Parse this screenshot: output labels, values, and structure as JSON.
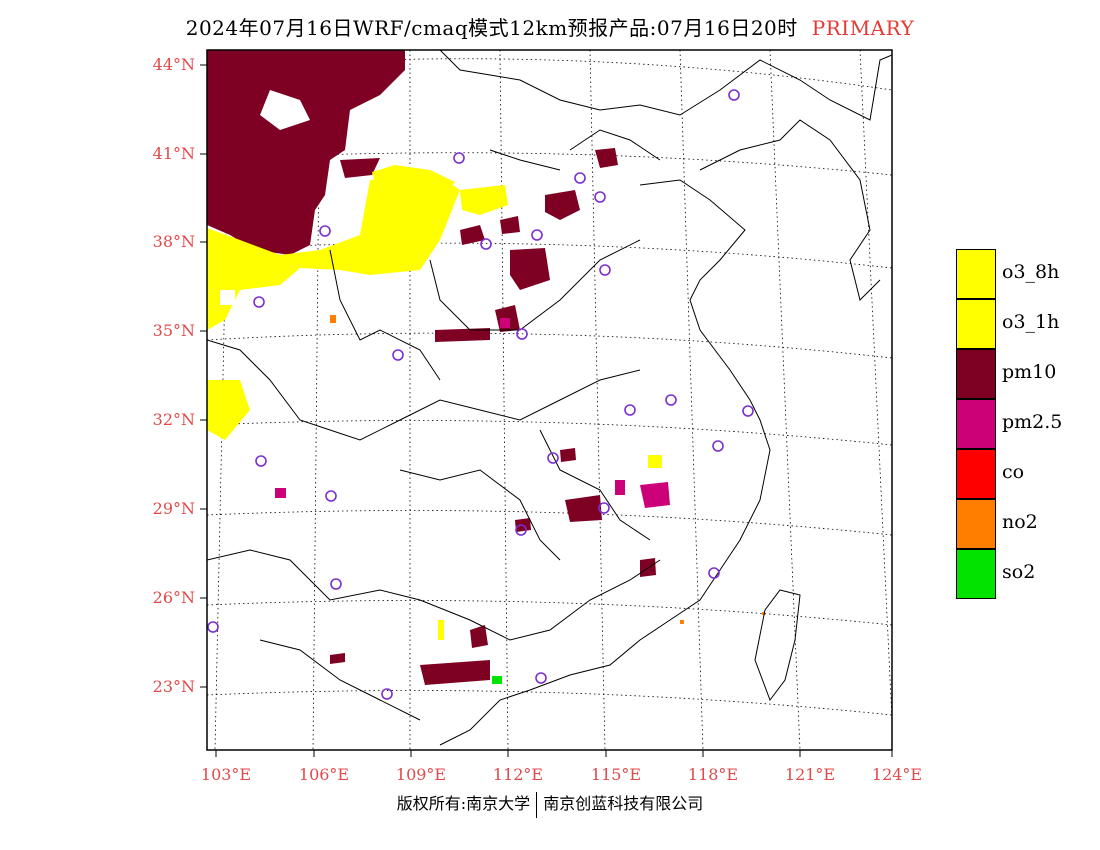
{
  "title": {
    "main": "2024年07月16日WRF/cmaq模式12km预报产品:07月16日20时",
    "tag": "PRIMARY",
    "tag_color": "#e53935"
  },
  "map": {
    "lat_labels": [
      "44°N",
      "41°N",
      "38°N",
      "35°N",
      "32°N",
      "29°N",
      "26°N",
      "23°N"
    ],
    "lon_labels": [
      "103°E",
      "106°E",
      "109°E",
      "112°E",
      "115°E",
      "118°E",
      "121°E",
      "124°E"
    ],
    "label_color": "#e04a4a"
  },
  "legend": {
    "items": [
      {
        "label": "o3_8h",
        "color": "#ffff00"
      },
      {
        "label": "o3_1h",
        "color": "#ffff00"
      },
      {
        "label": "pm10",
        "color": "#7e0023"
      },
      {
        "label": "pm2.5",
        "color": "#cc0077"
      },
      {
        "label": "co",
        "color": "#ff0000"
      },
      {
        "label": "no2",
        "color": "#ff7e00"
      },
      {
        "label": "so2",
        "color": "#00e400"
      }
    ]
  },
  "copyright": {
    "left": "版权所有:南京大学",
    "right": "南京创蓝科技有限公司"
  },
  "colors": {
    "pm10": "#7e0023",
    "o3": "#ffff00",
    "pm25": "#cc0077",
    "no2": "#ff7e00",
    "so2": "#00e400",
    "station": "#7b2fd0"
  }
}
